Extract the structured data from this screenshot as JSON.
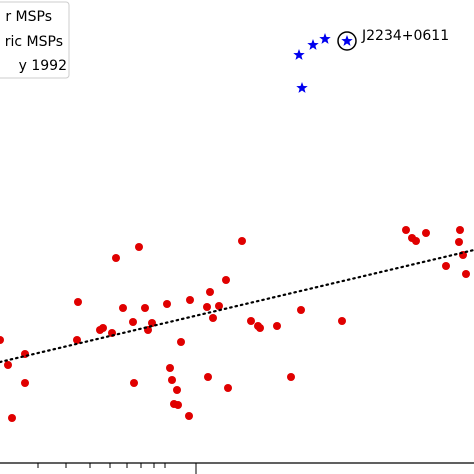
{
  "chart_data": {
    "type": "scatter",
    "xlim": [
      0,
      474
    ],
    "ylim": [
      0,
      474
    ],
    "xticks": [
      38,
      66,
      90,
      110,
      127,
      141,
      154,
      165,
      196
    ],
    "annotation": {
      "text": "J2234+0611",
      "x": 347,
      "y": 433
    },
    "legend": "upper left",
    "series": [
      {
        "name": "r MSPs",
        "color": "#e00000",
        "marker": "circle",
        "x": [
          0,
          8,
          25,
          25,
          12,
          78,
          77,
          100,
          103,
          112,
          116,
          123,
          133,
          134,
          139,
          145,
          148,
          152,
          167,
          170,
          172,
          174,
          177,
          178,
          181,
          189,
          190,
          207,
          208,
          210,
          213,
          219,
          226,
          228,
          242,
          251,
          258,
          260,
          277,
          291,
          301,
          342,
          406,
          412,
          416,
          426,
          446,
          459,
          460,
          463,
          466
        ],
        "values": [
          134,
          109,
          120,
          91,
          56,
          172,
          134,
          144,
          146,
          141,
          216,
          166,
          152,
          91,
          227,
          166,
          144,
          151,
          170,
          106,
          94,
          70,
          84,
          69,
          132,
          58,
          174,
          167,
          97,
          182,
          156,
          168,
          194,
          86,
          233,
          153,
          148,
          146,
          148,
          97,
          164,
          153,
          244,
          236,
          233,
          241,
          208,
          232,
          244,
          219,
          200
        ]
      },
      {
        "name": "ric MSPs",
        "color": "#0000ee",
        "marker": "star",
        "x": [
          299,
          313,
          325,
          347,
          302
        ],
        "values": [
          419,
          429,
          435,
          433,
          386
        ]
      },
      {
        "name": "y 1992",
        "color": "#000000",
        "marker": "dotted-line",
        "x": [
          0,
          474
        ],
        "values": [
          112,
          224
        ]
      }
    ]
  }
}
